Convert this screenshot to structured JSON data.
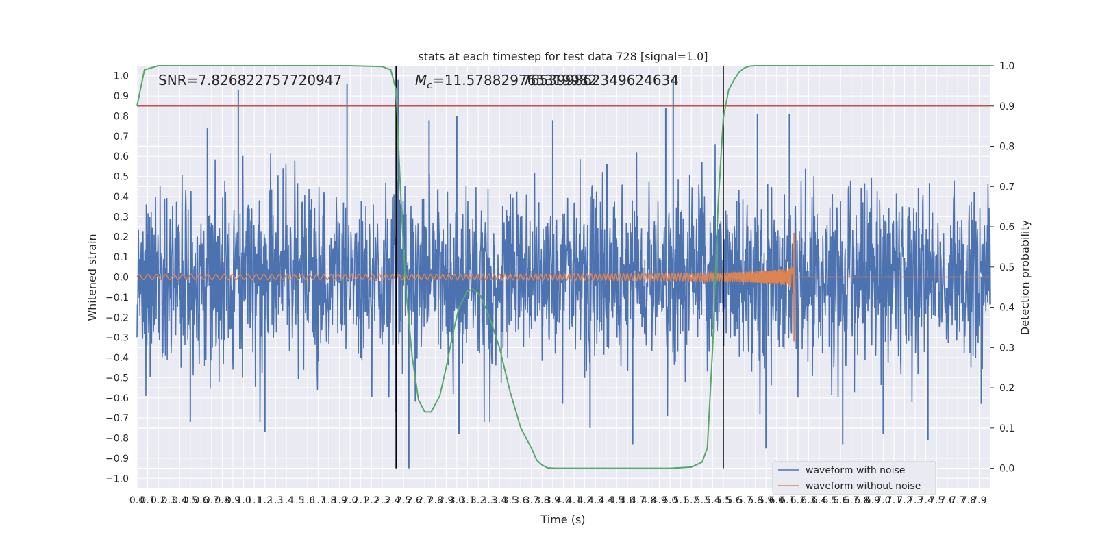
{
  "chart_data": {
    "type": "line",
    "title": "stats at each timestep for test data 728 [signal=1.0]",
    "xlabel": "Time (s)",
    "ylabel": "Whitened strain",
    "y2label": "Detection probability",
    "xlim": [
      0.0,
      8.0
    ],
    "ylim": [
      -1.05,
      1.05
    ],
    "y2lim": [
      -0.05,
      1.0
    ],
    "grid": true,
    "legend_position": "bottom-right",
    "annotations": {
      "snr": "SNR=7.826822757720947",
      "mc": "=11.578829765319982",
      "mc_overlap": "765399862349624634",
      "mc_symbol": "M",
      "mc_subscript": "c"
    },
    "x_ticks": [
      "0.0",
      "0.1",
      "0.2",
      "0.3",
      "0.4",
      "0.5",
      "0.6",
      "0.7",
      "0.8",
      "0.9",
      "1.0",
      "1.1",
      "1.2",
      "1.3",
      "1.4",
      "1.5",
      "1.6",
      "1.7",
      "1.8",
      "1.9",
      "2.0",
      "2.1",
      "2.2",
      "2.3",
      "2.4",
      "2.5",
      "2.6",
      "2.7",
      "2.8",
      "2.9",
      "3.0",
      "3.1",
      "3.2",
      "3.3",
      "3.4",
      "3.5",
      "3.6",
      "3.7",
      "3.8",
      "3.9",
      "4.0",
      "4.1",
      "4.2",
      "4.3",
      "4.4",
      "4.5",
      "4.6",
      "4.7",
      "4.8",
      "4.9",
      "5.0",
      "5.1",
      "5.2",
      "5.3",
      "5.4",
      "5.5",
      "5.6",
      "5.7",
      "5.8",
      "5.9",
      "6.0",
      "6.1",
      "6.2",
      "6.3",
      "6.4",
      "6.5",
      "6.6",
      "6.7",
      "6.8",
      "6.9",
      "7.0",
      "7.1",
      "7.2",
      "7.3",
      "7.4",
      "7.5",
      "7.6",
      "7.7",
      "7.8",
      "7.9"
    ],
    "y_ticks": [
      "1.0",
      "0.9",
      "0.8",
      "0.7",
      "0.6",
      "0.5",
      "0.4",
      "0.3",
      "0.2",
      "0.1",
      "0.0",
      "−0.1",
      "−0.2",
      "−0.3",
      "−0.4",
      "−0.5",
      "−0.6",
      "−0.7",
      "−0.8",
      "−0.9",
      "−1.0"
    ],
    "y2_ticks": [
      "1.0",
      "0.9",
      "0.8",
      "0.7",
      "0.6",
      "0.5",
      "0.4",
      "0.3",
      "0.2",
      "0.1",
      "0.0"
    ],
    "threshold_y2": 0.9,
    "vlines_x": [
      2.43,
      5.5
    ],
    "noise_spikes": [
      {
        "x": 0.95,
        "y": 0.93
      },
      {
        "x": 1.97,
        "y": 0.96
      },
      {
        "x": 2.45,
        "y": 0.98
      },
      {
        "x": 2.55,
        "y": -0.95
      },
      {
        "x": 2.43,
        "y": -0.67
      },
      {
        "x": 5.03,
        "y": 0.99
      },
      {
        "x": 4.96,
        "y": 0.84
      },
      {
        "x": 3.0,
        "y": 0.8
      },
      {
        "x": 3.02,
        "y": -0.78
      },
      {
        "x": 3.9,
        "y": 0.78
      },
      {
        "x": 4.25,
        "y": -0.75
      },
      {
        "x": 4.65,
        "y": -0.83
      },
      {
        "x": 1.2,
        "y": -0.77
      },
      {
        "x": 0.66,
        "y": 0.74
      },
      {
        "x": 6.12,
        "y": 0.81
      },
      {
        "x": 6.62,
        "y": -0.83
      },
      {
        "x": 7.0,
        "y": -0.78
      },
      {
        "x": 7.92,
        "y": -0.63
      },
      {
        "x": 5.82,
        "y": 0.81
      },
      {
        "x": 5.9,
        "y": -0.85
      },
      {
        "x": 7.42,
        "y": -0.81
      },
      {
        "x": 2.74,
        "y": 0.78
      },
      {
        "x": 0.5,
        "y": -0.72
      }
    ],
    "series": [
      {
        "name": "waveform with noise",
        "color": "#4c72b0",
        "envelope_amplitude": 0.4
      },
      {
        "name": "waveform without noise",
        "color": "#dd8452",
        "chirp_end_time": 6.17,
        "peak": 0.22,
        "trough": -0.32
      },
      {
        "color": "#55a868",
        "axis": "y2",
        "x": [
          0.0,
          0.07,
          0.2,
          0.5,
          1.0,
          1.5,
          2.0,
          2.3,
          2.38,
          2.43,
          2.47,
          2.52,
          2.58,
          2.64,
          2.7,
          2.76,
          2.84,
          2.9,
          2.96,
          3.02,
          3.1,
          3.15,
          3.22,
          3.3,
          3.4,
          3.5,
          3.6,
          3.7,
          3.75,
          3.8,
          3.85,
          3.92,
          4.0,
          4.5,
          5.0,
          5.2,
          5.3,
          5.35,
          5.4,
          5.45,
          5.5,
          5.55,
          5.6,
          5.65,
          5.7,
          5.75,
          5.8,
          5.9,
          6.0,
          6.5,
          7.0,
          7.5,
          8.0
        ],
        "y": [
          0.9,
          0.99,
          1.0,
          1.0,
          1.0,
          1.0,
          1.0,
          0.998,
          0.99,
          0.94,
          0.7,
          0.45,
          0.28,
          0.17,
          0.14,
          0.14,
          0.18,
          0.25,
          0.33,
          0.4,
          0.44,
          0.445,
          0.43,
          0.38,
          0.3,
          0.19,
          0.1,
          0.05,
          0.02,
          0.008,
          0.001,
          0.0,
          0.0,
          0.0,
          0.0,
          0.003,
          0.015,
          0.05,
          0.3,
          0.65,
          0.87,
          0.94,
          0.965,
          0.985,
          0.995,
          0.999,
          1.0,
          1.0,
          1.0,
          1.0,
          1.0,
          1.0,
          1.0
        ]
      }
    ]
  }
}
